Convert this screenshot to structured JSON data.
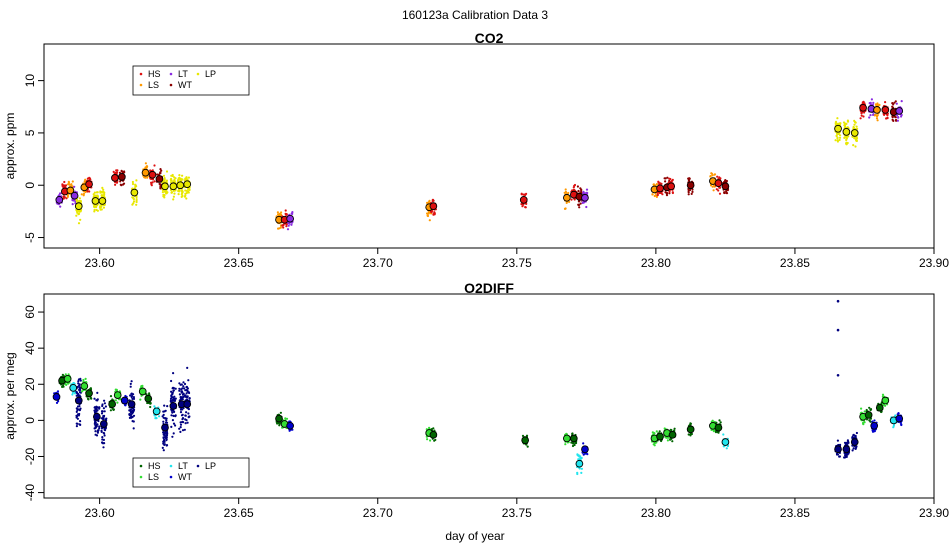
{
  "figure_title": "160123a   Calibration Data 3",
  "x_axis_label": "day of year",
  "chart_data": [
    {
      "type": "scatter",
      "title": "CO2",
      "xlabel": "",
      "ylabel": "approx. ppm",
      "xlim": [
        23.58,
        23.9
      ],
      "ylim": [
        -6,
        13.5
      ],
      "x_ticks": [
        "23.60",
        "23.65",
        "23.70",
        "23.75",
        "23.80",
        "23.85",
        "23.90"
      ],
      "y_ticks": [
        "-5",
        "0",
        "5",
        "10"
      ],
      "grid": false,
      "legend_position": "top-left",
      "legend": [
        {
          "name": "HS",
          "color": "#dd1111"
        },
        {
          "name": "LS",
          "color": "#ff9900"
        },
        {
          "name": "LT",
          "color": "#8a2be2"
        },
        {
          "name": "WT",
          "color": "#8b0000"
        },
        {
          "name": "LP",
          "color": "#e8e800"
        }
      ],
      "clusters": [
        {
          "x": 23.5855,
          "y": -1.4,
          "color": "#8a2be2"
        },
        {
          "x": 23.5875,
          "y": -0.6,
          "color": "#dd1111"
        },
        {
          "x": 23.5895,
          "y": -0.5,
          "color": "#ff9900"
        },
        {
          "x": 23.591,
          "y": -1.0,
          "color": "#8a2be2"
        },
        {
          "x": 23.5925,
          "y": -2.0,
          "color": "#e8e800"
        },
        {
          "x": 23.5945,
          "y": -0.2,
          "color": "#ff9900"
        },
        {
          "x": 23.5962,
          "y": 0.1,
          "color": "#dd1111"
        },
        {
          "x": 23.5985,
          "y": -1.5,
          "color": "#e8e800"
        },
        {
          "x": 23.601,
          "y": -1.5,
          "color": "#e8e800"
        },
        {
          "x": 23.6055,
          "y": 0.7,
          "color": "#dd1111"
        },
        {
          "x": 23.608,
          "y": 0.8,
          "color": "#8b0000"
        },
        {
          "x": 23.6125,
          "y": -0.7,
          "color": "#e8e800"
        },
        {
          "x": 23.6165,
          "y": 1.2,
          "color": "#ff9900"
        },
        {
          "x": 23.619,
          "y": 1.0,
          "color": "#dd1111"
        },
        {
          "x": 23.6215,
          "y": 0.6,
          "color": "#8b0000"
        },
        {
          "x": 23.6235,
          "y": -0.1,
          "color": "#e8e800"
        },
        {
          "x": 23.6265,
          "y": -0.1,
          "color": "#e8e800"
        },
        {
          "x": 23.629,
          "y": 0.0,
          "color": "#e8e800"
        },
        {
          "x": 23.6315,
          "y": 0.1,
          "color": "#e8e800"
        },
        {
          "x": 23.6645,
          "y": -3.3,
          "color": "#ff9900"
        },
        {
          "x": 23.6665,
          "y": -3.3,
          "color": "#dd1111"
        },
        {
          "x": 23.6685,
          "y": -3.2,
          "color": "#8a2be2"
        },
        {
          "x": 23.7185,
          "y": -2.1,
          "color": "#ff9900"
        },
        {
          "x": 23.72,
          "y": -2.0,
          "color": "#dd1111"
        },
        {
          "x": 23.7525,
          "y": -1.4,
          "color": "#dd1111"
        },
        {
          "x": 23.768,
          "y": -1.2,
          "color": "#ff9900"
        },
        {
          "x": 23.7705,
          "y": -0.9,
          "color": "#dd1111"
        },
        {
          "x": 23.7725,
          "y": -1.1,
          "color": "#8b0000"
        },
        {
          "x": 23.7745,
          "y": -1.2,
          "color": "#8a2be2"
        },
        {
          "x": 23.7995,
          "y": -0.4,
          "color": "#ff9900"
        },
        {
          "x": 23.8015,
          "y": -0.3,
          "color": "#dd1111"
        },
        {
          "x": 23.804,
          "y": -0.2,
          "color": "#8b0000"
        },
        {
          "x": 23.8055,
          "y": -0.1,
          "color": "#dd1111"
        },
        {
          "x": 23.8125,
          "y": 0.0,
          "color": "#8b0000"
        },
        {
          "x": 23.8205,
          "y": 0.4,
          "color": "#ff9900"
        },
        {
          "x": 23.8225,
          "y": 0.2,
          "color": "#dd1111"
        },
        {
          "x": 23.825,
          "y": -0.1,
          "color": "#8b0000"
        },
        {
          "x": 23.8655,
          "y": 5.4,
          "color": "#e8e800"
        },
        {
          "x": 23.8685,
          "y": 5.1,
          "color": "#e8e800"
        },
        {
          "x": 23.8715,
          "y": 5.0,
          "color": "#e8e800"
        },
        {
          "x": 23.8745,
          "y": 7.4,
          "color": "#dd1111"
        },
        {
          "x": 23.8775,
          "y": 7.3,
          "color": "#8a2be2"
        },
        {
          "x": 23.8795,
          "y": 7.2,
          "color": "#ff9900"
        },
        {
          "x": 23.8825,
          "y": 7.2,
          "color": "#dd1111"
        },
        {
          "x": 23.8855,
          "y": 7.0,
          "color": "#8b0000"
        },
        {
          "x": 23.8875,
          "y": 7.1,
          "color": "#8a2be2"
        }
      ]
    },
    {
      "type": "scatter",
      "title": "O2DIFF",
      "xlabel": "day of year",
      "ylabel": "approx. per meg",
      "xlim": [
        23.58,
        23.9
      ],
      "ylim": [
        -43,
        70
      ],
      "x_ticks": [
        "23.60",
        "23.65",
        "23.70",
        "23.75",
        "23.80",
        "23.85",
        "23.90"
      ],
      "y_ticks": [
        "-40",
        "-20",
        "0",
        "20",
        "40",
        "60"
      ],
      "grid": false,
      "legend_position": "bottom-left",
      "legend": [
        {
          "name": "HS",
          "color": "#006400"
        },
        {
          "name": "LS",
          "color": "#33dd33"
        },
        {
          "name": "LT",
          "color": "#22e5ee"
        },
        {
          "name": "WT",
          "color": "#0000cd"
        },
        {
          "name": "LP",
          "color": "#000080"
        }
      ],
      "clusters": [
        {
          "x": 23.5845,
          "y": 13,
          "color": "#0000cd"
        },
        {
          "x": 23.5865,
          "y": 22,
          "color": "#006400"
        },
        {
          "x": 23.5885,
          "y": 23,
          "color": "#33dd33"
        },
        {
          "x": 23.5905,
          "y": 18,
          "color": "#22e5ee"
        },
        {
          "x": 23.5925,
          "y": 11,
          "color": "#000080"
        },
        {
          "x": 23.5945,
          "y": 19,
          "color": "#33dd33"
        },
        {
          "x": 23.5962,
          "y": 15,
          "color": "#006400"
        },
        {
          "x": 23.599,
          "y": 2,
          "color": "#000080"
        },
        {
          "x": 23.6015,
          "y": -2,
          "color": "#000080"
        },
        {
          "x": 23.6045,
          "y": 9,
          "color": "#006400"
        },
        {
          "x": 23.6065,
          "y": 14,
          "color": "#33dd33"
        },
        {
          "x": 23.609,
          "y": 11,
          "color": "#0000cd"
        },
        {
          "x": 23.6115,
          "y": 9,
          "color": "#000080"
        },
        {
          "x": 23.6155,
          "y": 16,
          "color": "#33dd33"
        },
        {
          "x": 23.6175,
          "y": 12,
          "color": "#006400"
        },
        {
          "x": 23.6205,
          "y": 5,
          "color": "#22e5ee"
        },
        {
          "x": 23.6235,
          "y": -4,
          "color": "#000080"
        },
        {
          "x": 23.6265,
          "y": 8,
          "color": "#000080"
        },
        {
          "x": 23.6295,
          "y": 9,
          "color": "#000080"
        },
        {
          "x": 23.6315,
          "y": 9,
          "color": "#000080"
        },
        {
          "x": 23.6645,
          "y": 1,
          "color": "#006400"
        },
        {
          "x": 23.6665,
          "y": -2,
          "color": "#33dd33"
        },
        {
          "x": 23.6685,
          "y": -3,
          "color": "#0000cd"
        },
        {
          "x": 23.7185,
          "y": -7,
          "color": "#33dd33"
        },
        {
          "x": 23.72,
          "y": -8,
          "color": "#006400"
        },
        {
          "x": 23.753,
          "y": -11,
          "color": "#006400"
        },
        {
          "x": 23.768,
          "y": -10,
          "color": "#33dd33"
        },
        {
          "x": 23.7705,
          "y": -10,
          "color": "#006400"
        },
        {
          "x": 23.7725,
          "y": -24,
          "color": "#22e5ee"
        },
        {
          "x": 23.7745,
          "y": -16,
          "color": "#0000cd"
        },
        {
          "x": 23.7995,
          "y": -10,
          "color": "#33dd33"
        },
        {
          "x": 23.8015,
          "y": -9,
          "color": "#006400"
        },
        {
          "x": 23.804,
          "y": -7,
          "color": "#33dd33"
        },
        {
          "x": 23.806,
          "y": -8,
          "color": "#006400"
        },
        {
          "x": 23.8125,
          "y": -5,
          "color": "#006400"
        },
        {
          "x": 23.8205,
          "y": -3,
          "color": "#33dd33"
        },
        {
          "x": 23.8225,
          "y": -4,
          "color": "#006400"
        },
        {
          "x": 23.825,
          "y": -12,
          "color": "#22e5ee"
        },
        {
          "x": 23.8655,
          "y": -16,
          "color": "#000080"
        },
        {
          "x": 23.8685,
          "y": -16,
          "color": "#000080"
        },
        {
          "x": 23.8715,
          "y": -12,
          "color": "#000080"
        },
        {
          "x": 23.8745,
          "y": 2,
          "color": "#33dd33"
        },
        {
          "x": 23.8765,
          "y": 3,
          "color": "#006400"
        },
        {
          "x": 23.8785,
          "y": -3,
          "color": "#0000cd"
        },
        {
          "x": 23.8805,
          "y": 7,
          "color": "#006400"
        },
        {
          "x": 23.8825,
          "y": 11,
          "color": "#33dd33"
        },
        {
          "x": 23.8855,
          "y": 0,
          "color": "#22e5ee"
        },
        {
          "x": 23.8875,
          "y": 1,
          "color": "#0000cd"
        }
      ],
      "outliers": [
        {
          "x": 23.8655,
          "y": 66,
          "color": "#000080"
        },
        {
          "x": 23.8655,
          "y": 50,
          "color": "#000080"
        },
        {
          "x": 23.8655,
          "y": 25,
          "color": "#000080"
        }
      ]
    }
  ]
}
